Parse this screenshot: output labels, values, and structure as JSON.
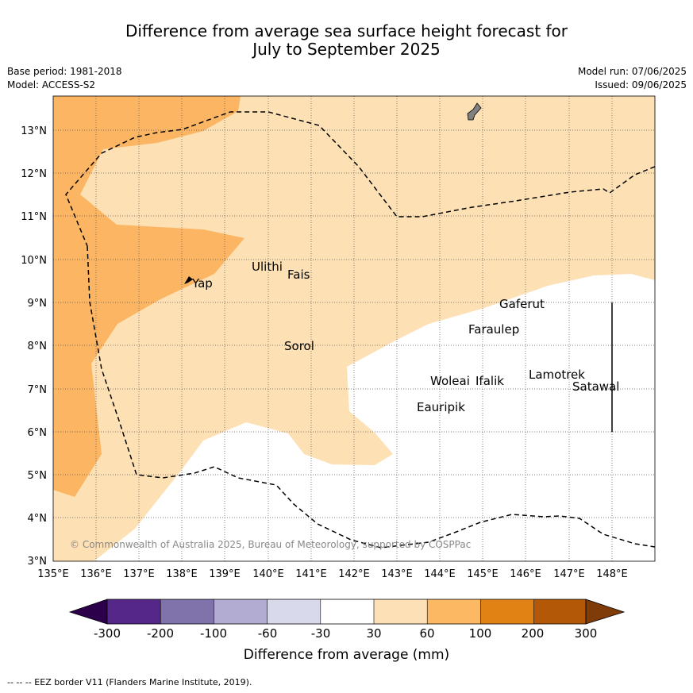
{
  "title_line1": "Difference from average sea surface height forecast for",
  "title_line2": "July to September 2025",
  "meta_left": {
    "base_period": "Base period: 1981-2018",
    "model": "Model: ACCESS-S2"
  },
  "meta_right": {
    "model_run": "Model run: 07/06/2025",
    "issued": "Issued: 09/06/2025"
  },
  "map": {
    "lon_range": [
      135,
      149
    ],
    "lat_range": [
      3,
      13.8
    ],
    "x_ticks": [
      "135°E",
      "136°E",
      "137°E",
      "138°E",
      "139°E",
      "140°E",
      "141°E",
      "142°E",
      "143°E",
      "144°E",
      "145°E",
      "146°E",
      "147°E",
      "148°E"
    ],
    "y_ticks": [
      "3°N",
      "4°N",
      "5°N",
      "6°N",
      "7°N",
      "8°N",
      "9°N",
      "10°N",
      "11°N",
      "12°N",
      "13°N"
    ],
    "gridlines": "dotted",
    "places": [
      {
        "name": "Ulithi"
      },
      {
        "name": "Fais"
      },
      {
        "name": "Yap"
      },
      {
        "name": "Gaferut"
      },
      {
        "name": "Faraulep"
      },
      {
        "name": "Sorol"
      },
      {
        "name": "Woleai"
      },
      {
        "name": "Ifalik"
      },
      {
        "name": "Lamotrek"
      },
      {
        "name": "Satawal"
      },
      {
        "name": "Eauripik"
      }
    ],
    "copyright": "© Commonwealth of Australia 2025, Bureau of Meteorology, supported by COSPPac",
    "shading": [
      {
        "band": "30 to 60 mm",
        "color": "#fde0b4"
      },
      {
        "band": "60 to 100 mm",
        "color": "#fbb563"
      },
      {
        "band": "-30 to 30 mm",
        "color": "#ffffff"
      }
    ]
  },
  "colorbar": {
    "ticks": [
      "-300",
      "-200",
      "-100",
      "-60",
      "-30",
      "30",
      "60",
      "100",
      "200",
      "300"
    ],
    "colors": [
      "#2d004b",
      "#542788",
      "#8073ac",
      "#b2abd2",
      "#d8daeb",
      "#ffffff",
      "#fee0b6",
      "#fdb863",
      "#e08214",
      "#b35806",
      "#7f3b08"
    ],
    "label": "Difference from average (mm)"
  },
  "footnote": "--  --  -- EEZ border V11 (Flanders Marine Institute, 2019)."
}
